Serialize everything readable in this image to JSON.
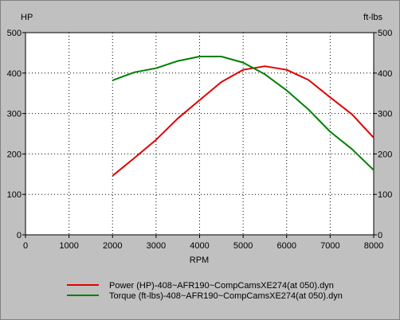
{
  "chart_data": {
    "type": "line",
    "xlabel": "RPM",
    "ylabel_left": "HP",
    "ylabel_right": "ft-lbs",
    "xlim": [
      0,
      8000
    ],
    "ylim": [
      0,
      500
    ],
    "x_ticks": [
      0,
      1000,
      2000,
      3000,
      4000,
      5000,
      6000,
      7000,
      8000
    ],
    "y_ticks": [
      0,
      100,
      200,
      300,
      400,
      500
    ],
    "grid": true,
    "legend_position": "bottom",
    "series": [
      {
        "name": "Power (HP)-408~AFR190~CompCamsXE274(at 050).dyn",
        "color": "#e00000",
        "x": [
          2000,
          2500,
          3000,
          3500,
          4000,
          4500,
          5000,
          5500,
          6000,
          6500,
          7000,
          7500,
          8000
        ],
        "y": [
          146,
          190,
          235,
          288,
          333,
          378,
          408,
          417,
          408,
          383,
          340,
          298,
          240
        ]
      },
      {
        "name": "Torque (ft-lbs)-408~AFR190~CompCamsXE274(at 050).dyn",
        "color": "#008000",
        "x": [
          2000,
          2500,
          3000,
          3500,
          4000,
          4500,
          5000,
          5500,
          6000,
          6500,
          7000,
          7500,
          8000
        ],
        "y": [
          382,
          402,
          412,
          430,
          441,
          441,
          426,
          397,
          357,
          310,
          255,
          212,
          160
        ]
      }
    ]
  }
}
